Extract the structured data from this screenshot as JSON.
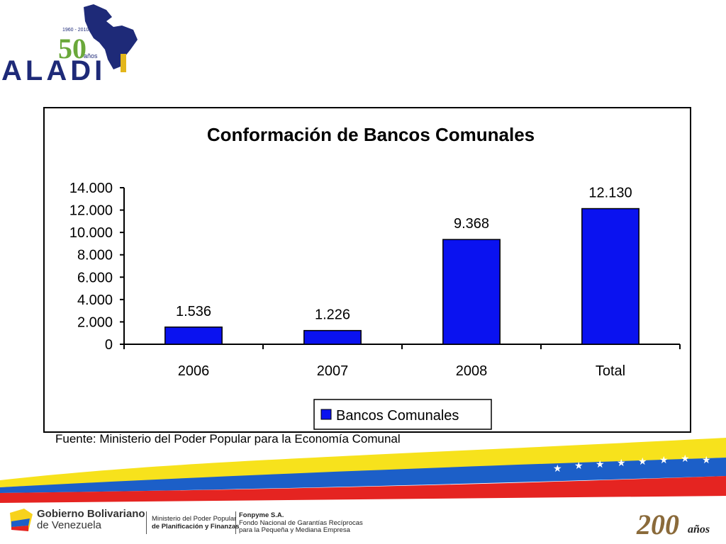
{
  "logo": {
    "text": "ALADI",
    "years": "1960 - 2010",
    "anniversary": "50",
    "anos": "años"
  },
  "chart_data": {
    "type": "bar",
    "title": "Conformación de Bancos Comunales",
    "categories": [
      "2006",
      "2007",
      "2008",
      "Total"
    ],
    "series": [
      {
        "name": "Bancos Comunales",
        "values": [
          1536,
          1226,
          9368,
          12130
        ],
        "color": "#0a12f0"
      }
    ],
    "value_labels": [
      "1.536",
      "1.226",
      "9.368",
      "12.130"
    ],
    "yticks": [
      0,
      2000,
      4000,
      6000,
      8000,
      10000,
      12000,
      14000
    ],
    "ytick_labels": [
      "0",
      "2.000",
      "4.000",
      "6.000",
      "8.000",
      "10.000",
      "12.000",
      "14.000"
    ],
    "ylim": [
      0,
      14000
    ],
    "grid": false,
    "legend": "bottom"
  },
  "source": "Fuente: Ministerio del Poder Popular para la Economía Comunal",
  "footer": {
    "gov_line1": "Gobierno Bolivariano",
    "gov_line2": "de Venezuela",
    "ministry_line1": "Ministerio del Poder Popular",
    "ministry_line2": "de Planificación y Finanzas",
    "fonpyme_line1": "Fonpyme S.A.",
    "fonpyme_line2": "Fondo Nacional de Garantías Recíprocas",
    "fonpyme_line3": "para la Pequeña y Mediana Empresa",
    "bicentennial_number": "200",
    "bicentennial_word": "años"
  }
}
